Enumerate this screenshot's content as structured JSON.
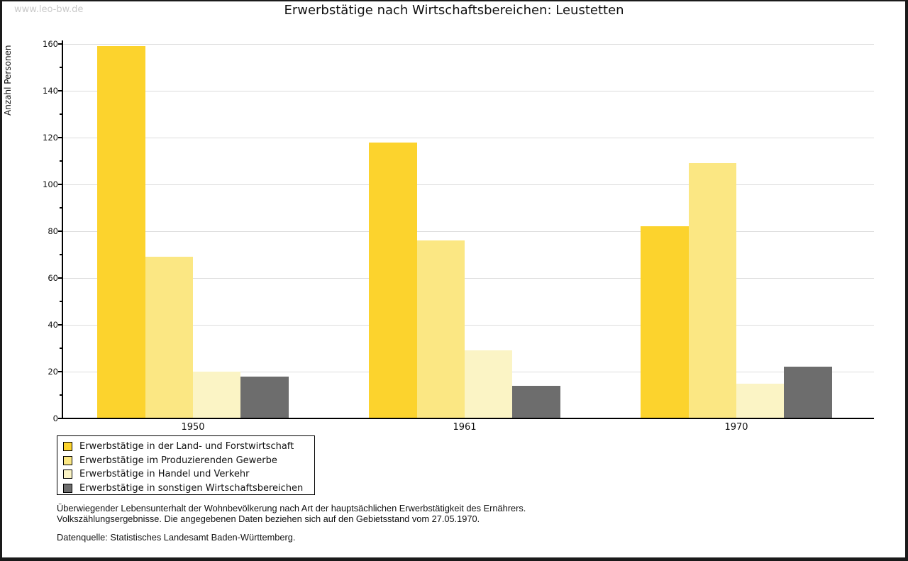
{
  "watermark": "www.leo-bw.de",
  "title": "Erwerbstätige nach Wirtschaftsbereichen: Leustetten",
  "chart_data": {
    "type": "bar",
    "title": "Erwerbstätige nach Wirtschaftsbereichen: Leustetten",
    "xlabel": "",
    "ylabel": "Anzahl Personen",
    "categories": [
      "1950",
      "1961",
      "1970"
    ],
    "series": [
      {
        "name": "Erwerbstätige in der Land- und Forstwirtschaft",
        "color": "#FCD32D",
        "values": [
          159,
          118,
          82
        ]
      },
      {
        "name": "Erwerbstätige im Produzierenden Gewerbe",
        "color": "#FBE783",
        "values": [
          69,
          76,
          109
        ]
      },
      {
        "name": "Erwerbstätige in Handel und Verkehr",
        "color": "#FBF4C5",
        "values": [
          20,
          29,
          15
        ]
      },
      {
        "name": "Erwerbstätige in sonstigen Wirtschaftsbereichen",
        "color": "#6D6D6D",
        "values": [
          18,
          14,
          22
        ]
      }
    ],
    "ylim": [
      0,
      160
    ],
    "ytick_step": 20,
    "yminor_step": 10,
    "grid": true,
    "legend_position": "bottom-left"
  },
  "colors": {
    "grid": "#DDDDDD",
    "axis": "#000000",
    "watermark": "#C9C9C9"
  },
  "footnotes": {
    "line1": "Überwiegender Lebensunterhalt der Wohnbevölkerung nach Art der hauptsächlichen Erwerbstätigkeit des Ernährers.",
    "line2": "Volkszählungsergebnisse. Die angegebenen Daten beziehen sich auf den Gebietsstand vom 27.05.1970.",
    "source": "Datenquelle: Statistisches Landesamt Baden-Württemberg."
  }
}
